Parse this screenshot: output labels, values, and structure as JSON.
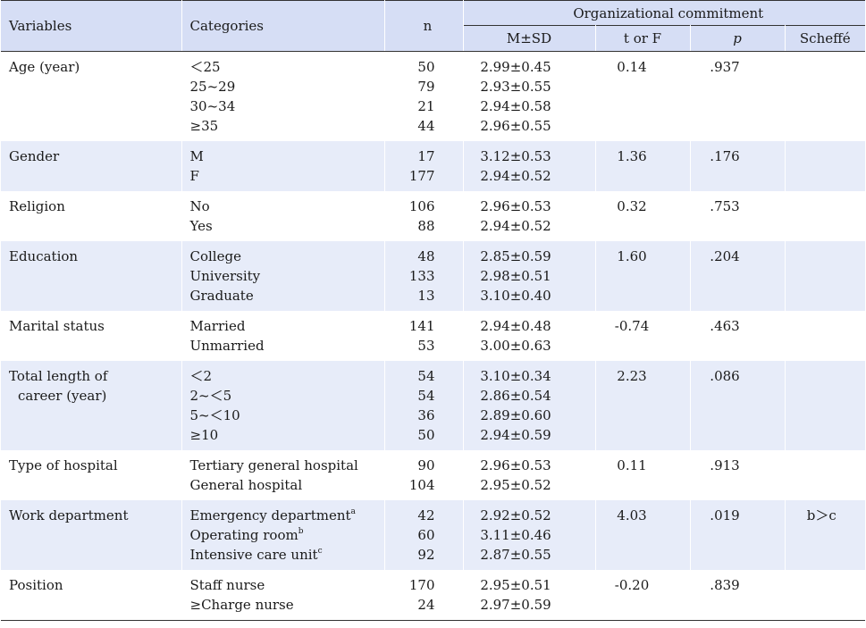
{
  "header": {
    "variables": "Variables",
    "categories": "Categories",
    "n": "n",
    "group": "Organizational commitment",
    "msd": "M±SD",
    "t_or_f": "t or F",
    "p": "p",
    "scheffe": "Scheffé"
  },
  "rows": [
    {
      "variable": [
        "Age (year)"
      ],
      "shade": false,
      "t": "0.14",
      "p": ".937",
      "scheffe": "",
      "items": [
        {
          "cat": "＜25",
          "sup": "",
          "n": "50",
          "msd": "2.99±0.45"
        },
        {
          "cat": "25~29",
          "sup": "",
          "n": "79",
          "msd": "2.93±0.55"
        },
        {
          "cat": "30~34",
          "sup": "",
          "n": "21",
          "msd": "2.94±0.58"
        },
        {
          "cat": "≥35",
          "sup": "",
          "n": "44",
          "msd": "2.96±0.55"
        }
      ]
    },
    {
      "variable": [
        "Gender"
      ],
      "shade": true,
      "t": "1.36",
      "p": ".176",
      "scheffe": "",
      "items": [
        {
          "cat": "M",
          "sup": "",
          "n": "17",
          "msd": "3.12±0.53"
        },
        {
          "cat": "F",
          "sup": "",
          "n": "177",
          "msd": "2.94±0.52"
        }
      ]
    },
    {
      "variable": [
        "Religion"
      ],
      "shade": false,
      "t": "0.32",
      "p": ".753",
      "scheffe": "",
      "items": [
        {
          "cat": "No",
          "sup": "",
          "n": "106",
          "msd": "2.96±0.53"
        },
        {
          "cat": "Yes",
          "sup": "",
          "n": "88",
          "msd": "2.94±0.52"
        }
      ]
    },
    {
      "variable": [
        "Education"
      ],
      "shade": true,
      "t": "1.60",
      "p": ".204",
      "scheffe": "",
      "items": [
        {
          "cat": "College",
          "sup": "",
          "n": "48",
          "msd": "2.85±0.59"
        },
        {
          "cat": "University",
          "sup": "",
          "n": "133",
          "msd": "2.98±0.51"
        },
        {
          "cat": "Graduate",
          "sup": "",
          "n": "13",
          "msd": "3.10±0.40"
        }
      ]
    },
    {
      "variable": [
        "Marital status"
      ],
      "shade": false,
      "t": "-0.74",
      "p": ".463",
      "scheffe": "",
      "items": [
        {
          "cat": "Married",
          "sup": "",
          "n": "141",
          "msd": "2.94±0.48"
        },
        {
          "cat": "Unmarried",
          "sup": "",
          "n": "53",
          "msd": "3.00±0.63"
        }
      ]
    },
    {
      "variable": [
        "Total length of",
        "career (year)"
      ],
      "shade": true,
      "t": "2.23",
      "p": ".086",
      "scheffe": "",
      "items": [
        {
          "cat": "＜2",
          "sup": "",
          "n": "54",
          "msd": "3.10±0.34"
        },
        {
          "cat": "2~＜5",
          "sup": "",
          "n": "54",
          "msd": "2.86±0.54"
        },
        {
          "cat": "5~＜10",
          "sup": "",
          "n": "36",
          "msd": "2.89±0.60"
        },
        {
          "cat": "≥10",
          "sup": "",
          "n": "50",
          "msd": "2.94±0.59"
        }
      ]
    },
    {
      "variable": [
        "Type of hospital"
      ],
      "shade": false,
      "t": "0.11",
      "p": ".913",
      "scheffe": "",
      "items": [
        {
          "cat": "Tertiary general hospital",
          "sup": "",
          "n": "90",
          "msd": "2.96±0.53"
        },
        {
          "cat": "General hospital",
          "sup": "",
          "n": "104",
          "msd": "2.95±0.52"
        }
      ]
    },
    {
      "variable": [
        "Work department"
      ],
      "shade": true,
      "t": "4.03",
      "p": ".019",
      "scheffe": "b＞c",
      "items": [
        {
          "cat": "Emergency department",
          "sup": "a",
          "n": "42",
          "msd": "2.92±0.52"
        },
        {
          "cat": "Operating room",
          "sup": "b",
          "n": "60",
          "msd": "3.11±0.46"
        },
        {
          "cat": "Intensive care unit",
          "sup": "c",
          "n": "92",
          "msd": "2.87±0.55"
        }
      ]
    },
    {
      "variable": [
        "Position"
      ],
      "shade": false,
      "t": "-0.20",
      "p": ".839",
      "scheffe": "",
      "items": [
        {
          "cat": "Staff nurse",
          "sup": "",
          "n": "170",
          "msd": "2.95±0.51"
        },
        {
          "cat": "≥Charge nurse",
          "sup": "",
          "n": "24",
          "msd": "2.97±0.59"
        }
      ]
    }
  ]
}
